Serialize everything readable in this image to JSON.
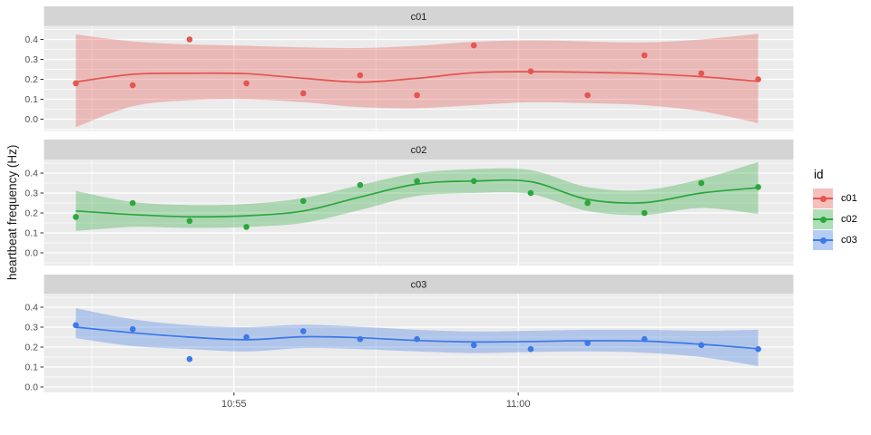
{
  "chart_data": {
    "type": "scatter",
    "subtype": "faceted scatter + loess smooth line with confidence ribbon (ggplot2 grey theme, 3 stacked facets)",
    "title": "",
    "xlabel": "",
    "ylabel": "heartbeat frequency (Hz)",
    "facet_variable": "id",
    "x_definition": "clock time; t = minutes after 10:50 (estimated from tick positions)",
    "x_ticks": [
      {
        "t": 5,
        "label": "10:55"
      },
      {
        "t": 10,
        "label": "11:00"
      }
    ],
    "x_minor_ticks_t": [
      2.5,
      7.5,
      12.5
    ],
    "xlim_t": [
      1.66,
      14.84
    ],
    "y_ticks": [
      {
        "v": 0.0,
        "label": "0.0"
      },
      {
        "v": 0.1,
        "label": "0.1"
      },
      {
        "v": 0.2,
        "label": "0.2"
      },
      {
        "v": 0.3,
        "label": "0.3"
      },
      {
        "v": 0.4,
        "label": "0.4"
      }
    ],
    "y_minor_ticks_v": [
      -0.05,
      0.05,
      0.15,
      0.25,
      0.35,
      0.45
    ],
    "ylim": [
      -0.06,
      0.47
    ],
    "grid": true,
    "legend_position": "right",
    "t": [
      2.22,
      3.22,
      4.22,
      5.22,
      6.22,
      7.22,
      8.22,
      9.22,
      10.22,
      11.22,
      12.22,
      13.22,
      14.22
    ],
    "facets": [
      {
        "id": "c01",
        "color": "#E4564E",
        "points": [
          0.18,
          0.17,
          0.4,
          0.18,
          0.13,
          0.22,
          0.12,
          0.37,
          0.24,
          0.12,
          0.32,
          0.23,
          0.2
        ],
        "smooth": {
          "line": [
            0.187,
            0.225,
            0.23,
            0.228,
            0.205,
            0.186,
            0.205,
            0.233,
            0.238,
            0.235,
            0.228,
            0.213,
            0.19
          ],
          "hi": [
            0.425,
            0.39,
            0.375,
            0.368,
            0.36,
            0.357,
            0.368,
            0.388,
            0.395,
            0.39,
            0.385,
            0.4,
            0.428
          ],
          "lo": [
            -0.04,
            0.065,
            0.095,
            0.1,
            0.085,
            0.06,
            0.055,
            0.07,
            0.085,
            0.08,
            0.07,
            0.04,
            -0.02
          ]
        }
      },
      {
        "id": "c02",
        "color": "#2BA73C",
        "points": [
          0.18,
          0.25,
          0.16,
          0.13,
          0.26,
          0.34,
          0.36,
          0.36,
          0.3,
          0.25,
          0.2,
          0.35,
          0.33
        ],
        "smooth": {
          "line": [
            0.21,
            0.192,
            0.181,
            0.186,
            0.21,
            0.28,
            0.345,
            0.36,
            0.357,
            0.268,
            0.252,
            0.3,
            0.327
          ],
          "hi": [
            0.31,
            0.255,
            0.24,
            0.245,
            0.275,
            0.34,
            0.4,
            0.42,
            0.415,
            0.33,
            0.315,
            0.37,
            0.455
          ],
          "lo": [
            0.11,
            0.13,
            0.125,
            0.13,
            0.15,
            0.215,
            0.285,
            0.3,
            0.295,
            0.21,
            0.19,
            0.225,
            0.195
          ]
        }
      },
      {
        "id": "c03",
        "color": "#3C79E6",
        "points": [
          0.31,
          0.29,
          0.14,
          0.25,
          0.28,
          0.24,
          0.24,
          0.21,
          0.19,
          0.22,
          0.24,
          0.21,
          0.19
        ],
        "smooth": {
          "line": [
            0.3,
            0.272,
            0.25,
            0.237,
            0.252,
            0.247,
            0.233,
            0.226,
            0.228,
            0.232,
            0.23,
            0.214,
            0.192
          ],
          "hi": [
            0.395,
            0.34,
            0.31,
            0.3,
            0.312,
            0.302,
            0.287,
            0.278,
            0.282,
            0.287,
            0.287,
            0.282,
            0.287
          ],
          "lo": [
            0.245,
            0.205,
            0.19,
            0.178,
            0.195,
            0.19,
            0.178,
            0.17,
            0.175,
            0.178,
            0.172,
            0.15,
            0.105
          ]
        }
      }
    ],
    "legend": {
      "title": "id",
      "entries": [
        {
          "label": "c01",
          "color": "#E4564E"
        },
        {
          "label": "c02",
          "color": "#2BA73C"
        },
        {
          "label": "c03",
          "color": "#3C79E6"
        }
      ]
    },
    "style": {
      "panel_bg": "#EBEBEB",
      "strip_bg": "#D4D4D4",
      "grid_color": "#FFFFFF",
      "tick_mark_color": "#333333",
      "tick_label_color": "#4D4D4D",
      "strip_text_color": "#1A1A1A",
      "axis_title_color": "#1A1A1A",
      "ribbon_opacity": 0.33
    }
  }
}
